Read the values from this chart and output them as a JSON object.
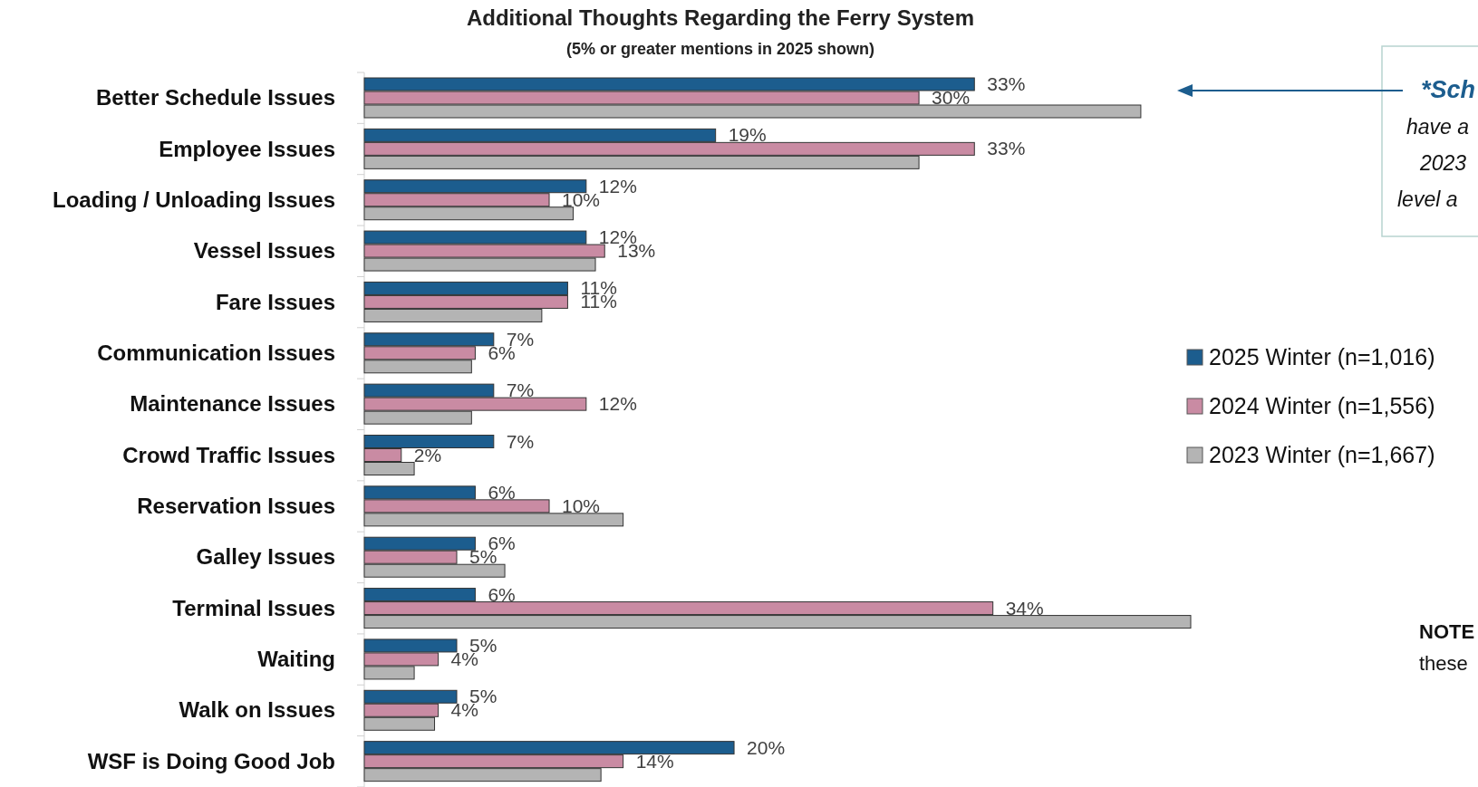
{
  "chart_data": {
    "type": "bar",
    "orientation": "horizontal",
    "title": "Additional Thoughts Regarding the Ferry System",
    "subtitle": "(5% or greater mentions in 2025 shown)",
    "categories": [
      "Better Schedule Issues",
      "Employee Issues",
      "Loading / Unloading Issues",
      "Vessel Issues",
      "Fare Issues",
      "Communication Issues",
      "Maintenance Issues",
      "Crowd Traffic Issues",
      "Reservation Issues",
      "Galley Issues",
      "Terminal Issues",
      "Waiting",
      "Walk on Issues",
      "WSF is Doing Good Job"
    ],
    "series": [
      {
        "name": "2025 Winter (n=1,016)",
        "color": "#1c5d8e",
        "values": [
          33,
          19,
          12,
          12,
          11,
          7,
          7,
          7,
          6,
          6,
          6,
          5,
          5,
          20
        ],
        "value_labels": [
          "33%",
          "19%",
          "12%",
          "12%",
          "11%",
          "7%",
          "7%",
          "7%",
          "6%",
          "6%",
          "6%",
          "5%",
          "5%",
          "20%"
        ]
      },
      {
        "name": "2024 Winter (n=1,556)",
        "color": "#c98ba3",
        "values": [
          30,
          33,
          10,
          13,
          11,
          6,
          12,
          2,
          10,
          5,
          34,
          4,
          4,
          14
        ],
        "value_labels": [
          "30%",
          "33%",
          "10%",
          "13%",
          "11%",
          "6%",
          "12%",
          "2%",
          "10%",
          "5%",
          "34%",
          "4%",
          "4%",
          "14%"
        ]
      },
      {
        "name": "2023 Winter (n=1,667)",
        "color": "#b4b4b4",
        "values": [
          42,
          30,
          11.3,
          12.5,
          9.6,
          5.8,
          5.8,
          2.7,
          14,
          7.6,
          44.7,
          2.7,
          3.8,
          12.8
        ]
      }
    ],
    "legend": "right",
    "annotations": [
      "*Sch",
      "have a",
      "2023",
      "level a",
      "NOTE",
      "these"
    ]
  }
}
